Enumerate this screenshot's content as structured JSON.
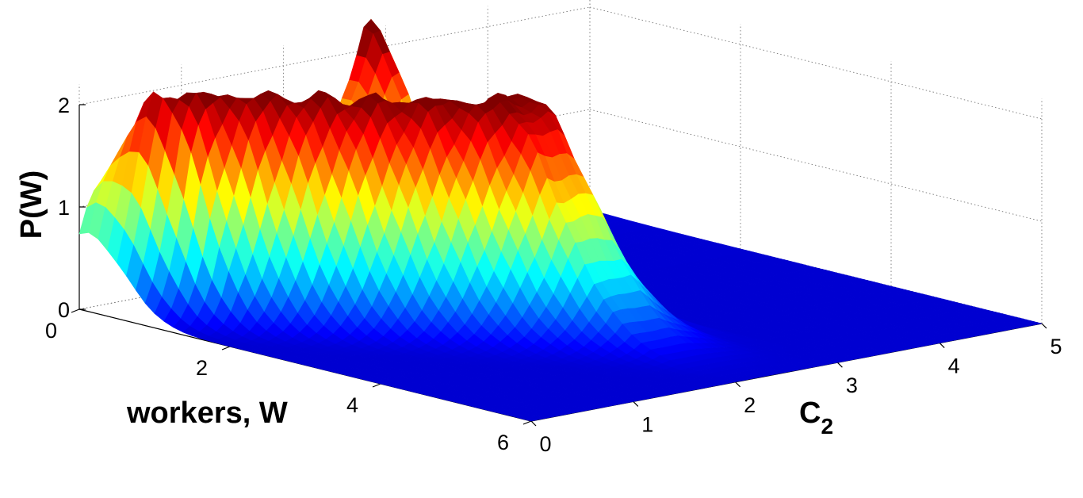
{
  "chart_data": {
    "type": "surface3d",
    "title": "",
    "xlabel": "workers, W",
    "ylabel_main": "C",
    "ylabel_sub": "2",
    "zlabel": "P(W)",
    "xlim": [
      0,
      6
    ],
    "ylim": [
      0,
      5
    ],
    "zlim": [
      0,
      2
    ],
    "x_ticks": [
      "0",
      "2",
      "4",
      "6"
    ],
    "y_ticks": [
      "0",
      "1",
      "2",
      "3",
      "4",
      "5"
    ],
    "z_ticks": [
      "0",
      "1",
      "2"
    ],
    "colormap": "jet",
    "grid": true,
    "surface": {
      "description_free_model": true,
      "w_peak_location_at_c2_0": 0.1,
      "w_peak_location_at_c2_2": 2.8,
      "main_ridge_height": 2.15,
      "secondary_peak_height": 2.35,
      "secondary_peak_c2": 2.85,
      "plateau_beyond_c2": 3.0
    }
  }
}
